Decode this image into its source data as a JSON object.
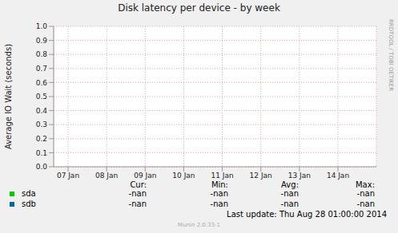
{
  "chart_data": {
    "type": "line",
    "title": "Disk latency per device - by week",
    "y_label": "Average IO Wait (seconds)",
    "categories": [
      "07 Jan",
      "08 Jan",
      "09 Jan",
      "10 Jan",
      "11 Jan",
      "12 Jan",
      "13 Jan",
      "14 Jan"
    ],
    "series": [
      {
        "name": "sda",
        "color": "#00cc00",
        "values": [
          null,
          null,
          null,
          null,
          null,
          null,
          null,
          null
        ],
        "stats": [
          "-nan",
          "-nan",
          "-nan",
          "-nan"
        ]
      },
      {
        "name": "sdb",
        "color": "#0066b3",
        "values": [
          null,
          null,
          null,
          null,
          null,
          null,
          null,
          null
        ],
        "stats": [
          "-nan",
          "-nan",
          "-nan",
          "-nan"
        ]
      }
    ],
    "stats_columns": [
      "Cur:",
      "Min:",
      "Avg:",
      "Max:"
    ],
    "ylim": [
      0,
      1
    ],
    "yticks": [
      {
        "value": 0,
        "label": "0.0"
      },
      0.1,
      0.2,
      0.3,
      0.4,
      0.5,
      0.6,
      0.7,
      0.8,
      0.9,
      {
        "value": 1,
        "label": "1.0"
      }
    ],
    "grid": true,
    "last_update": "Last update:  Thu Aug 28 01:00:00 2014",
    "footer": "Munin 2.0.33-1",
    "watermark": "RRDTOOL / TOBI OETIKER"
  }
}
